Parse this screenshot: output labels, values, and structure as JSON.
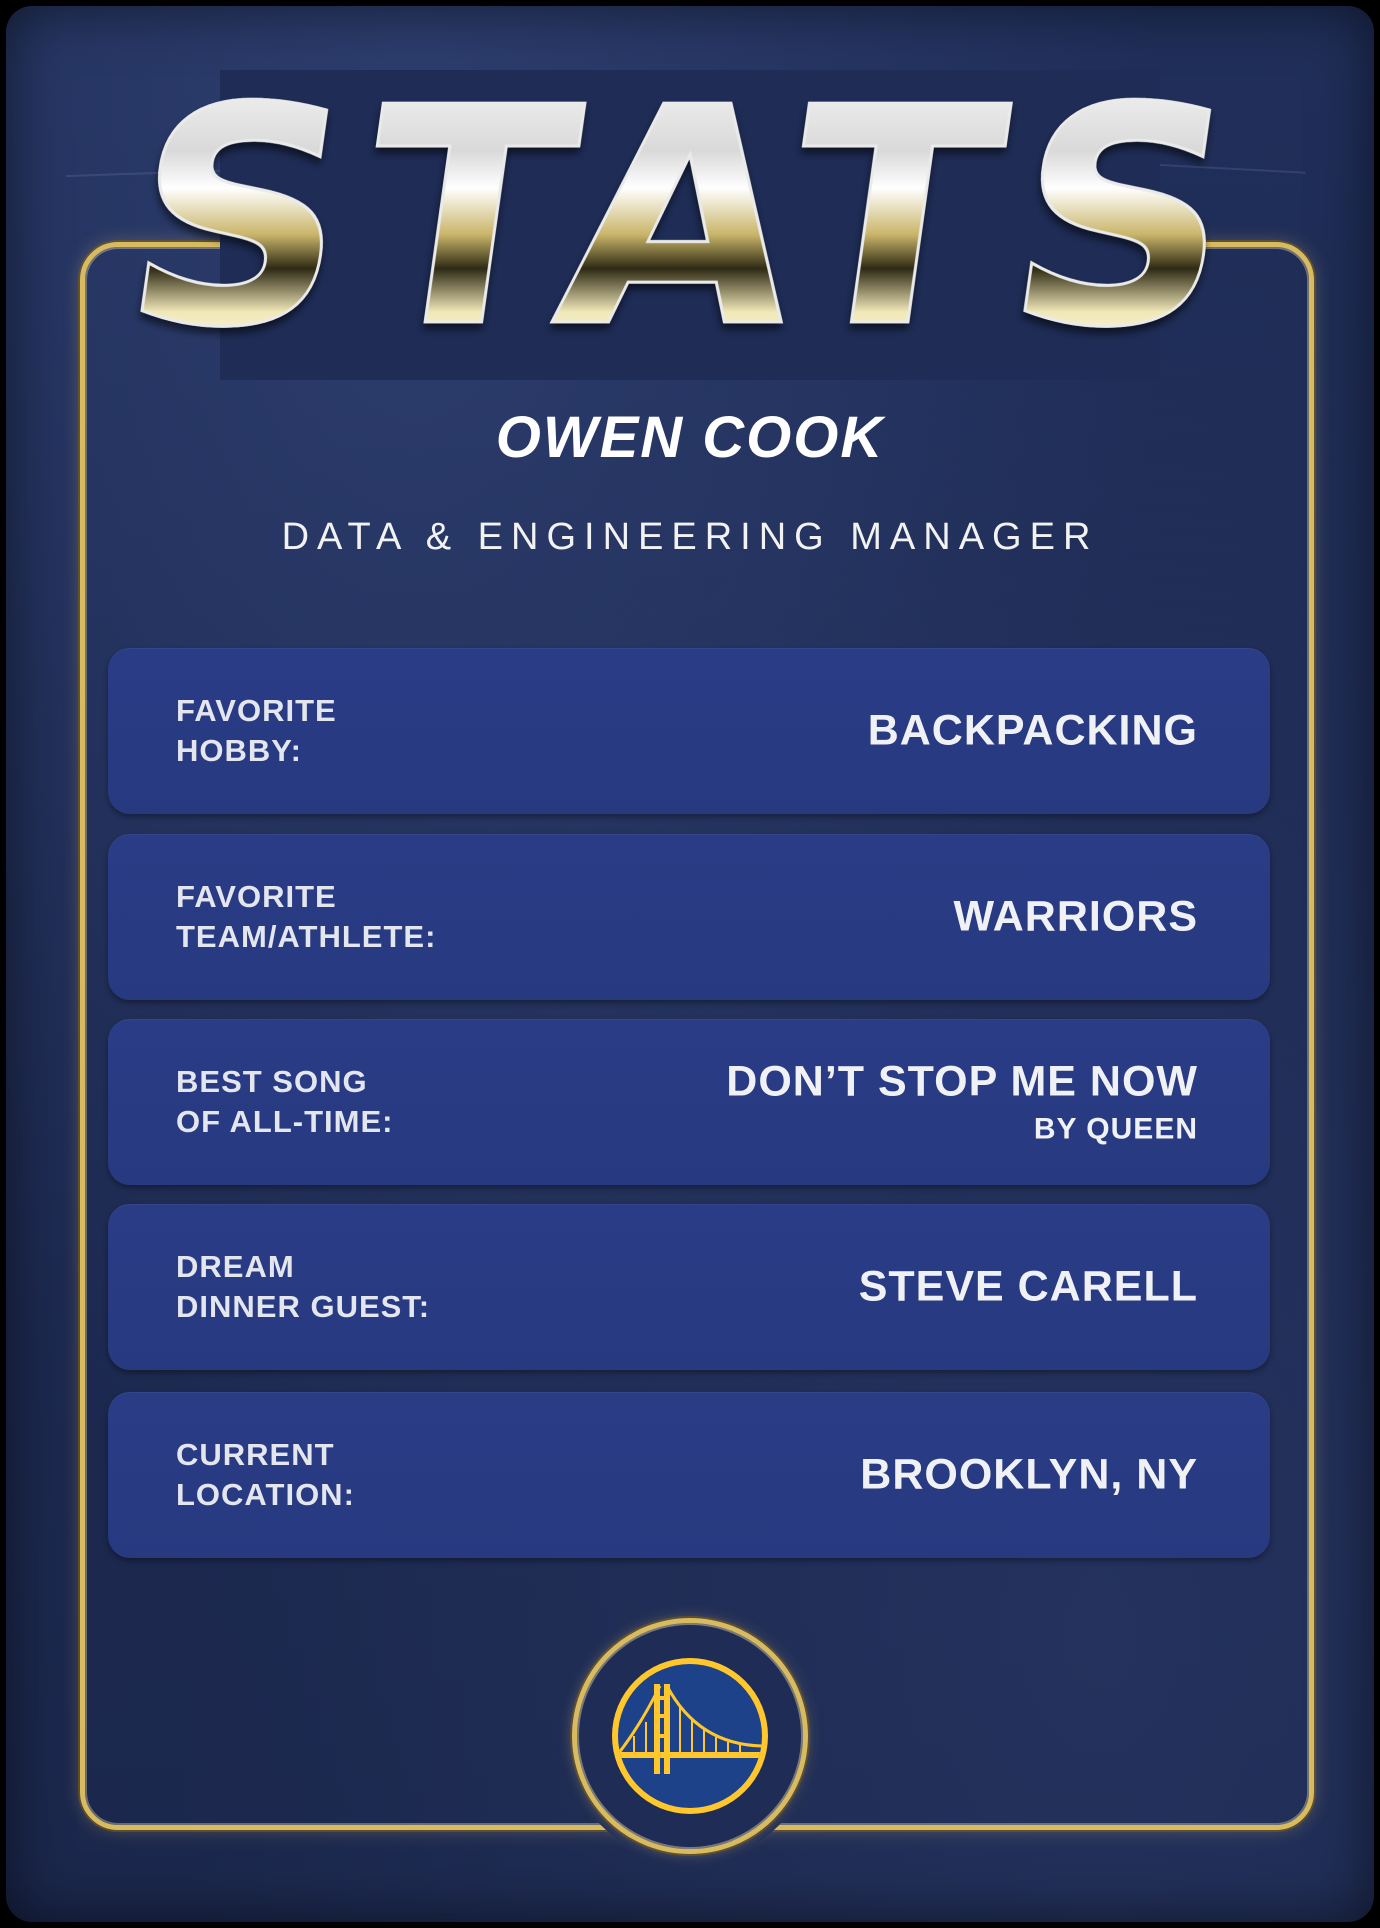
{
  "card": {
    "title": "STATS",
    "name": "OWEN COOK",
    "role": "DATA & ENGINEERING MANAGER"
  },
  "stats": [
    {
      "label": "FAVORITE\nHOBBY:",
      "value": "BACKPACKING",
      "sub": ""
    },
    {
      "label": "FAVORITE\nTEAM/ATHLETE:",
      "value": "WARRIORS",
      "sub": ""
    },
    {
      "label": "BEST SONG\nOF ALL-TIME:",
      "value": "DON’T STOP ME NOW",
      "sub": "BY QUEEN"
    },
    {
      "label": "DREAM\nDINNER GUEST:",
      "value": "STEVE CARELL",
      "sub": ""
    },
    {
      "label": "CURRENT\nLOCATION:",
      "value": "BROOKLYN, NY",
      "sub": ""
    }
  ],
  "badge": {
    "icon": "golden-gate-bridge-logo-icon"
  },
  "colors": {
    "background": "#1d2a52",
    "row": "#2a3c86",
    "gold": "#d8bb61",
    "logo_blue": "#1d428a",
    "logo_gold": "#ffc72c"
  }
}
